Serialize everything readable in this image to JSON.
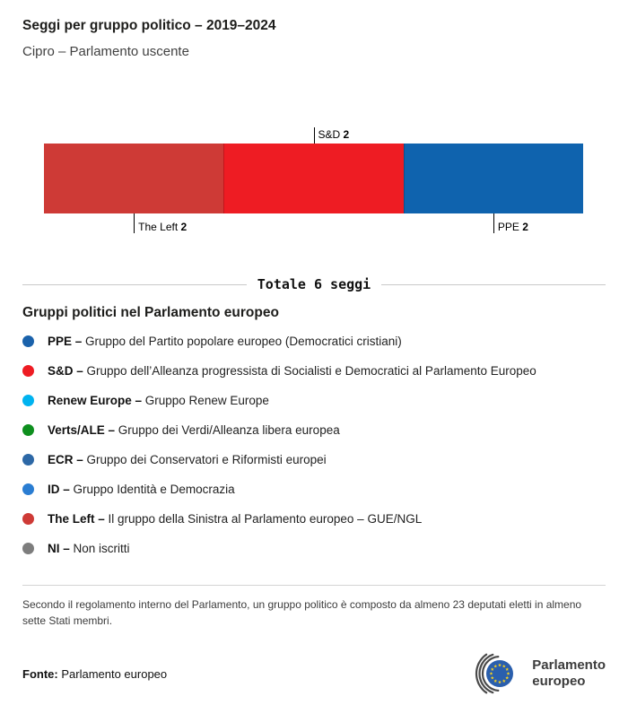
{
  "header": {
    "title": "Seggi per gruppo politico – 2019–2024",
    "subtitle": "Cipro – Parlamento uscente"
  },
  "chart_data": {
    "type": "bar",
    "variant": "stacked-horizontal",
    "title": "Seggi per gruppo politico – 2019–2024",
    "subtitle": "Cipro – Parlamento uscente",
    "total_seats": 6,
    "total_label": "Totale 6 seggi",
    "categories": [
      "The Left",
      "S&D",
      "PPE"
    ],
    "values": [
      2,
      2,
      2
    ],
    "segments": [
      {
        "id": "the-left",
        "name": "The Left",
        "seats": 2,
        "color": "#ce3a36",
        "label_position": "below"
      },
      {
        "id": "sd",
        "name": "S&D",
        "seats": 2,
        "color": "#ee1c23",
        "label_position": "above"
      },
      {
        "id": "ppe",
        "name": "PPE",
        "seats": 2,
        "color": "#0f63ae",
        "label_position": "below"
      }
    ]
  },
  "legend": {
    "heading": "Gruppi politici nel Parlamento europeo",
    "items": [
      {
        "id": "ppe",
        "abbr": "PPE –",
        "desc": "Gruppo del Partito popolare europeo (Democratici cristiani)",
        "color": "#1a62ab"
      },
      {
        "id": "sd",
        "abbr": "S&D –",
        "desc": "Gruppo dell’Alleanza progressista di Socialisti e Democratici al Parlamento Europeo",
        "color": "#ee1c23"
      },
      {
        "id": "renew",
        "abbr": "Renew Europe –",
        "desc": "Gruppo Renew Europe",
        "color": "#00b3f0"
      },
      {
        "id": "verts-ale",
        "abbr": "Verts/ALE –",
        "desc": "Gruppo dei Verdi/Alleanza libera europea",
        "color": "#0e8f1e"
      },
      {
        "id": "ecr",
        "abbr": "ECR –",
        "desc": "Gruppo dei Conservatori e Riformisti europei",
        "color": "#2d68a6"
      },
      {
        "id": "id",
        "abbr": "ID –",
        "desc": "Gruppo Identità e Democrazia",
        "color": "#2a7dd2"
      },
      {
        "id": "the-left",
        "abbr": "The Left –",
        "desc": "Il gruppo della Sinistra al Parlamento europeo – GUE/NGL",
        "color": "#ce3a36"
      },
      {
        "id": "ni",
        "abbr": "NI –",
        "desc": "Non iscritti",
        "color": "#7d7d7d"
      }
    ]
  },
  "footnote": "Secondo il regolamento interno del Parlamento, un gruppo politico è composto da almeno 23 deputati eletti in almeno sette Stati membri.",
  "source": {
    "label": "Fonte:",
    "text": "Parlamento europeo"
  },
  "logo": {
    "line1": "Parlamento",
    "line2": "europeo",
    "flag_color": "#2a5fad",
    "star_color": "#f5d020",
    "arc_color": "#4a4a4a"
  }
}
